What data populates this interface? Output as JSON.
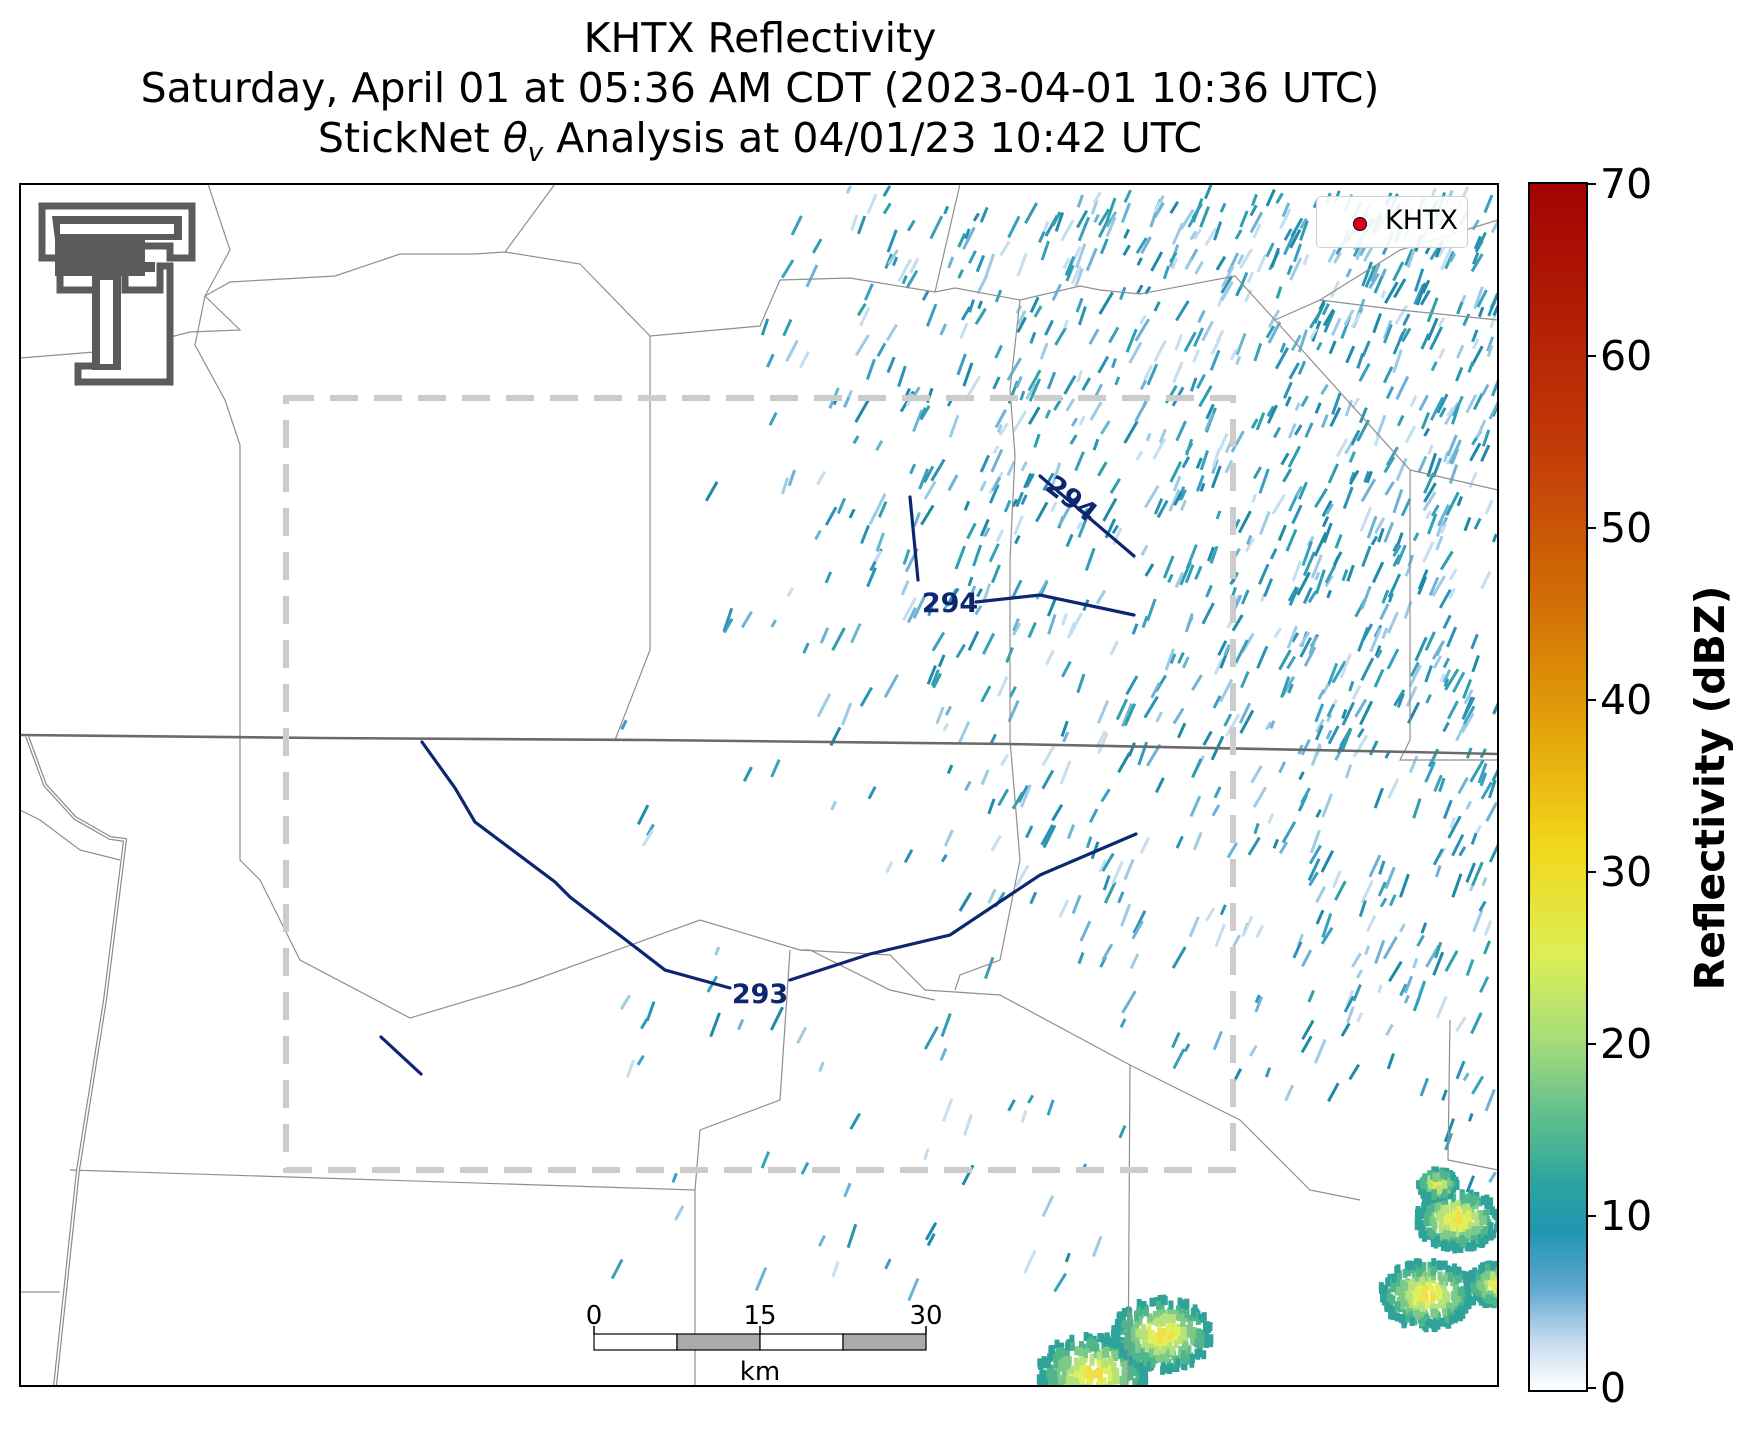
{
  "titles": {
    "line1": "KHTX Reflectivity",
    "line2": "Saturday, April 01 at 05:36 AM CDT (2023-04-01 10:36 UTC)",
    "line3": "StickNet θv Analysis at 04/01/23 10:42 UTC"
  },
  "legend": {
    "label": "KHTX",
    "marker_color": "#e3001b"
  },
  "colorbar": {
    "label": "Reflectivity (dBZ)",
    "min": 0,
    "max": 70,
    "ticks": [
      "0",
      "10",
      "20",
      "30",
      "40",
      "50",
      "60",
      "70"
    ]
  },
  "contours": {
    "label_a": "294",
    "label_b": "294",
    "label_c": "293",
    "color": "#0c2670"
  },
  "scale_bar": {
    "ticks": [
      "0",
      "15",
      "30"
    ],
    "unit": "km"
  },
  "logo": {
    "text": "Texas Tech Double T"
  }
}
